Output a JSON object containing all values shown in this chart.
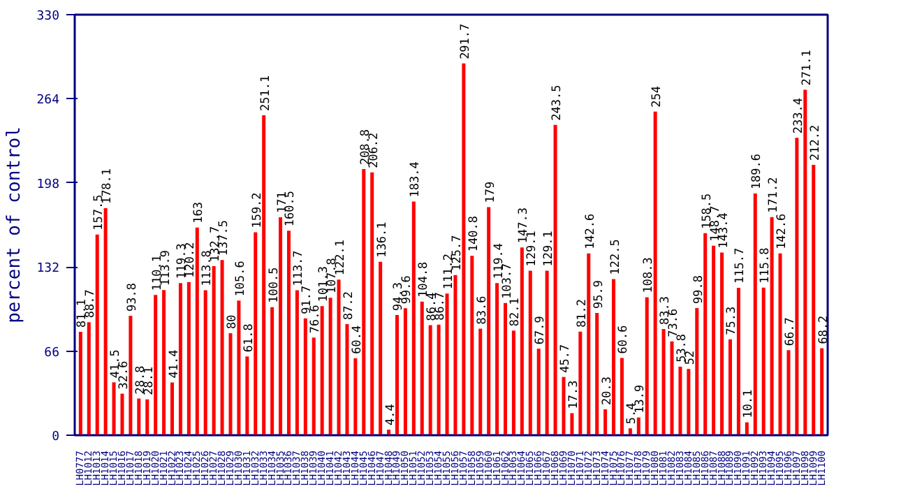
{
  "chart_data": {
    "type": "bar",
    "ylabel": "percent of control",
    "categories": [
      "LH0777",
      "LH1012",
      "LH1013",
      "LH1014",
      "LH1015",
      "LH1016",
      "LH1017",
      "LH1018",
      "LH1019",
      "LH1020",
      "LH1021",
      "LH1022",
      "LH1023",
      "LH1024",
      "LH1025",
      "LH1026",
      "LH1027",
      "LH1028",
      "LH1029",
      "LH1030",
      "LH1031",
      "LH1032",
      "LH1033",
      "LH1034",
      "LH1035",
      "LH1036",
      "LH1037",
      "LH1038",
      "LH1039",
      "LH1040",
      "LH1041",
      "LH1042",
      "LH1043",
      "LH1044",
      "LH1045",
      "LH1046",
      "LH1047",
      "LH1048",
      "LH1049",
      "LH1050",
      "LH1051",
      "LH1052",
      "LH1053",
      "LH1054",
      "LH1055",
      "LH1056",
      "LH1057",
      "LH1058",
      "LH1059",
      "LH1060",
      "LH1061",
      "LH1062",
      "LH1063",
      "LH1064",
      "LH1065",
      "LH1066",
      "LH1067",
      "LH1068",
      "LH1069",
      "LH1070",
      "LH1071",
      "LH1072",
      "LH1073",
      "LH1074",
      "LH1075",
      "LH1076",
      "LH1077",
      "LH1078",
      "LH1079",
      "LH1080",
      "LH1081",
      "LH1082",
      "LH1083",
      "LH1084",
      "LH1085",
      "LH1086",
      "LH1087",
      "LH1088",
      "LH1089",
      "LH1090",
      "LH1091",
      "LH1092",
      "LH1093",
      "LH1094",
      "LH1095",
      "LH1096",
      "LH1097",
      "LH1098",
      "LH1099",
      "LH1100"
    ],
    "values": [
      81.1,
      88.7,
      157.5,
      178.1,
      41.5,
      32.6,
      93.8,
      28.8,
      28.1,
      110.1,
      113.9,
      41.4,
      119.3,
      120.2,
      163,
      113.8,
      132.7,
      137.5,
      80,
      105.6,
      61.8,
      159.2,
      251.1,
      100.5,
      171,
      160.5,
      113.7,
      91.7,
      76.6,
      101.3,
      107.8,
      122.1,
      87.2,
      60.4,
      208.8,
      206.2,
      136.1,
      4.4,
      94.3,
      99.6,
      183.4,
      104.8,
      86.4,
      86.7,
      111.2,
      125.7,
      291.7,
      140.8,
      83.6,
      179,
      119.4,
      103.7,
      82.1,
      147.3,
      129.1,
      67.9,
      129.1,
      243.5,
      45.7,
      17.3,
      81.2,
      142.6,
      95.9,
      20.3,
      122.5,
      60.6,
      5.4,
      13.9,
      108.3,
      254,
      83.3,
      73.6,
      53.8,
      52,
      99.8,
      158.5,
      148.7,
      143.4,
      75.3,
      115.7,
      10.1,
      189.6,
      115.8,
      171.2,
      142.6,
      66.7,
      233.4,
      271.1,
      212.2,
      68.2
    ],
    "color": "#ff0000",
    "ylim": [
      0,
      330
    ],
    "yticks": [
      0,
      66,
      132,
      198,
      264,
      330
    ],
    "data_labels": true,
    "grid": false
  }
}
